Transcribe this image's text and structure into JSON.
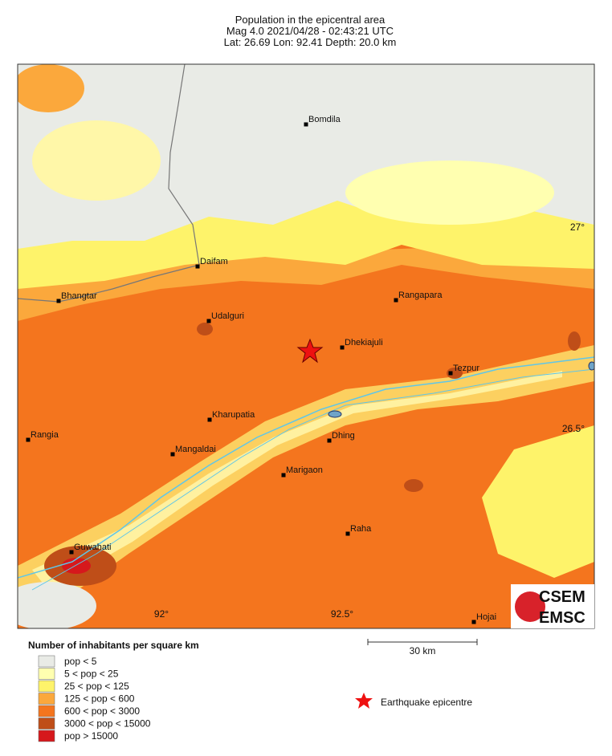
{
  "header": {
    "title": "Population in the epicentral area",
    "event": "Mag 4.0   2021/04/28 - 02:43:21 UTC",
    "location": "Lat: 26.69    Lon:  92.41     Depth:  20.0 km"
  },
  "map": {
    "places": [
      "Bomdila",
      "Daifam",
      "Bhangtar",
      "Udalguri",
      "Rangapara",
      "Dhekiajuli",
      "Tezpur",
      "Kharupatia",
      "Rangia",
      "Dhing",
      "Mangaldai",
      "Marigaon",
      "Raha",
      "Guwahati",
      "Hojai"
    ],
    "lat_labels": [
      "27°",
      "26.5°"
    ],
    "lon_labels": [
      "92°",
      "92.5°"
    ]
  },
  "legend": {
    "title": "Number of inhabitants per square km",
    "items": [
      {
        "label": "pop < 5",
        "color": "#e9ebe6"
      },
      {
        "label": "5 < pop < 25",
        "color": "#ffffb0"
      },
      {
        "label": "25 < pop < 125",
        "color": "#fef36a"
      },
      {
        "label": "125 < pop < 600",
        "color": "#fba83c"
      },
      {
        "label": "600 < pop < 3000",
        "color": "#f4751e"
      },
      {
        "label": "3000 < pop < 15000",
        "color": "#bf4e18"
      },
      {
        "label": "pop > 15000",
        "color": "#d6181c"
      }
    ]
  },
  "scale": {
    "label": "30 km"
  },
  "epicentre": {
    "label": "Earthquake epicentre"
  },
  "logo": {
    "top": "CSEM",
    "bottom": "EMSC"
  }
}
